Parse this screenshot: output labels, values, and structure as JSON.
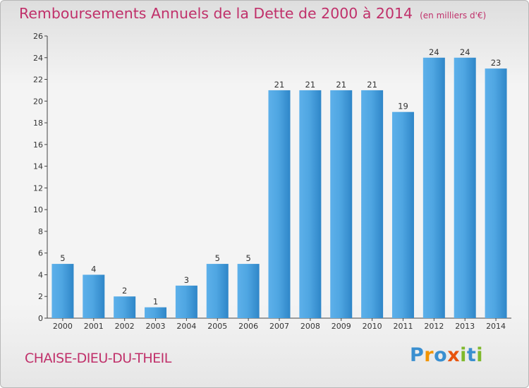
{
  "chart_data": {
    "type": "bar",
    "title": "Remboursements Annuels de la Dette de 2000 à 2014",
    "unit_note": "(en milliers d'€)",
    "categories": [
      "2000",
      "2001",
      "2002",
      "2003",
      "2004",
      "2005",
      "2006",
      "2007",
      "2008",
      "2009",
      "2010",
      "2011",
      "2012",
      "2013",
      "2014"
    ],
    "values": [
      5,
      4,
      2,
      1,
      3,
      5,
      5,
      21,
      21,
      21,
      21,
      19,
      24,
      24,
      23
    ],
    "ylim": [
      0,
      26
    ],
    "yticks": [
      0,
      2,
      4,
      6,
      8,
      10,
      12,
      14,
      16,
      18,
      20,
      22,
      24,
      26
    ],
    "xlabel": "",
    "ylabel": "",
    "grid": false,
    "bar_color": "#4a9ed8"
  },
  "commune": "CHAISE-DIEU-DU-THEIL",
  "brand": {
    "letters": [
      "P",
      "r",
      "o",
      "x",
      "i",
      "t",
      "i"
    ],
    "colors": [
      "#3a8fd0",
      "#f29400",
      "#3a8fd0",
      "#e8540e",
      "#7fb92d",
      "#3a8fd0",
      "#7fb92d"
    ]
  }
}
